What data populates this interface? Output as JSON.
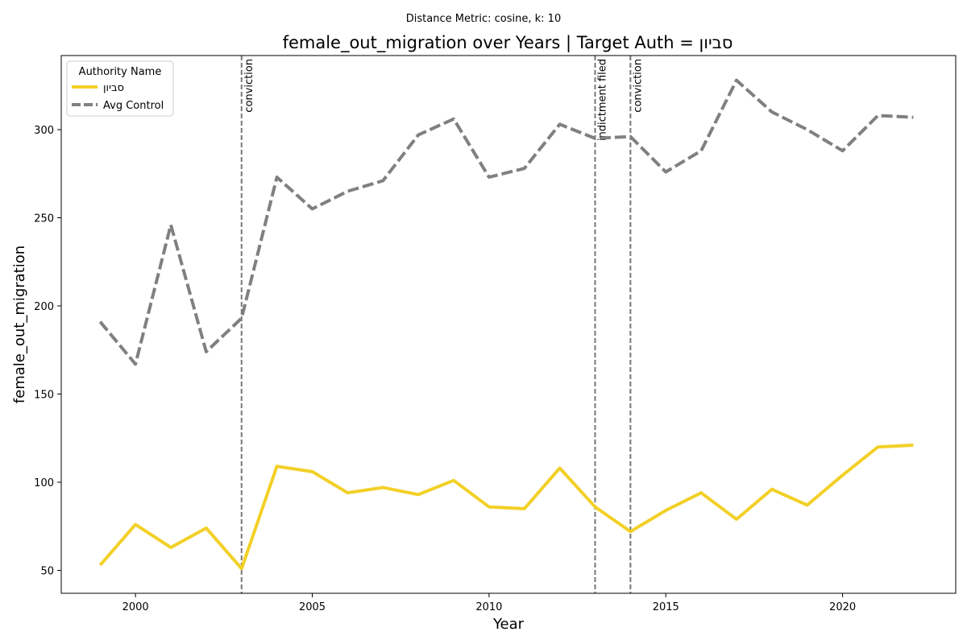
{
  "chart_data": {
    "type": "line",
    "suptitle": "Distance Metric: cosine, k: 10",
    "title": "female_out_migration over Years | Target Auth = סביון",
    "xlabel": "Year",
    "ylabel": "female_out_migration",
    "xlim": [
      1997.9,
      2023.2
    ],
    "ylim": [
      37,
      342
    ],
    "xticks": [
      2000,
      2005,
      2010,
      2015,
      2020
    ],
    "yticks": [
      50,
      100,
      150,
      200,
      250,
      300
    ],
    "grid": false,
    "legend": {
      "title": "Authority Name",
      "placement": "top-left"
    },
    "x": [
      1999,
      2000,
      2001,
      2002,
      2003,
      2004,
      2005,
      2006,
      2007,
      2008,
      2009,
      2010,
      2011,
      2012,
      2013,
      2014,
      2015,
      2016,
      2017,
      2018,
      2019,
      2020,
      2021,
      2022
    ],
    "series": [
      {
        "name": "סביון",
        "color": "#f2d027",
        "style": "solid",
        "values": [
          53,
          76,
          63,
          74,
          51,
          109,
          106,
          94,
          97,
          93,
          101,
          86,
          85,
          108,
          86,
          72,
          84,
          94,
          79,
          96,
          87,
          104,
          120,
          121
        ]
      },
      {
        "name": "Avg Control",
        "color": "#808080",
        "style": "dashed",
        "values": [
          191,
          167,
          246,
          174,
          193,
          273,
          255,
          265,
          271,
          297,
          306,
          273,
          278,
          303,
          295,
          296,
          276,
          288,
          328,
          310,
          300,
          288,
          308,
          307
        ]
      }
    ],
    "events": [
      {
        "x": 2003,
        "label": "conviction"
      },
      {
        "x": 2013,
        "label": "indictment filed"
      },
      {
        "x": 2014,
        "label": "conviction"
      }
    ]
  }
}
